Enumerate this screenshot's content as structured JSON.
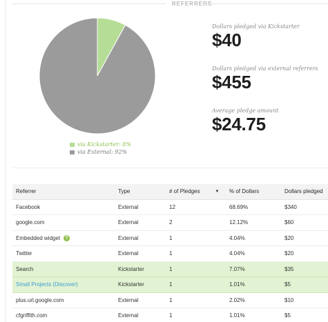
{
  "header": {
    "title": "REFERRERS"
  },
  "colors": {
    "kickstarter": "#b5dd96",
    "external": "#9b9b9b",
    "highlight_row": "#e1f3d2",
    "link": "#3e9ad4"
  },
  "chart_data": {
    "type": "pie",
    "slices": [
      {
        "label": "via Kickstarter:",
        "value": 8,
        "display": "8%",
        "color": "#b5dd96"
      },
      {
        "label": "via External:",
        "value": 92,
        "display": "92%",
        "color": "#9b9b9b"
      }
    ],
    "start_angle_deg": 0,
    "legend_position": "bottom"
  },
  "legend": {
    "kickstarter": "via Kickstarter: 8%",
    "external": "via External: 92%"
  },
  "stats": {
    "kickstarter": {
      "label": "Dollars pledged via Kickstarter",
      "value": "$40"
    },
    "external": {
      "label": "Dollars pledged via external referrers",
      "value": "$455"
    },
    "average": {
      "label": "Average pledge amount",
      "value": "$24.75"
    }
  },
  "table": {
    "columns": [
      "Referrer",
      "Type",
      "# of Pledges",
      "% of Dollars",
      "Dollars pledged"
    ],
    "sort_indicator": "▼",
    "help_icon_glyph": "?",
    "rows": [
      {
        "referrer": "Facebook",
        "type": "External",
        "pledges": "12",
        "percent": "68.69%",
        "dollars": "$340"
      },
      {
        "referrer": "google.com",
        "type": "External",
        "pledges": "2",
        "percent": "12.12%",
        "dollars": "$60"
      },
      {
        "referrer": "Embedded widget",
        "type": "External",
        "pledges": "1",
        "percent": "4.04%",
        "dollars": "$20"
      },
      {
        "referrer": "Twitter",
        "type": "External",
        "pledges": "1",
        "percent": "4.04%",
        "dollars": "$20"
      },
      {
        "referrer": "Search",
        "type": "Kickstarter",
        "pledges": "1",
        "percent": "7.07%",
        "dollars": "$35"
      },
      {
        "referrer": "Small Projects (Discover)",
        "type": "Kickstarter",
        "pledges": "1",
        "percent": "1.01%",
        "dollars": "$5"
      },
      {
        "referrer": "plus.url.google.com",
        "type": "External",
        "pledges": "1",
        "percent": "2.02%",
        "dollars": "$10"
      },
      {
        "referrer": "cfgriffith.com",
        "type": "External",
        "pledges": "1",
        "percent": "1.01%",
        "dollars": "$5"
      }
    ]
  }
}
